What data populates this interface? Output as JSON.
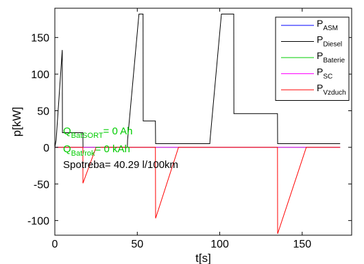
{
  "chart_data": {
    "type": "line",
    "xlabel": "t[s]",
    "ylabel": "p[kW]",
    "xlim": [
      0,
      180
    ],
    "ylim": [
      -120,
      190
    ],
    "xticks": [
      0,
      50,
      100,
      150
    ],
    "yticks": [
      -100,
      -50,
      0,
      50,
      100,
      150
    ],
    "grid": false,
    "legend_position": "top-right",
    "series": [
      {
        "name": "P",
        "sub": "ASM",
        "color": "#0000ff",
        "x": [
          0,
          173
        ],
        "y": [
          0,
          0
        ]
      },
      {
        "name": "P",
        "sub": "Diesel",
        "color": "#000000",
        "x": [
          0,
          0.8,
          4.5,
          4.6,
          5.5,
          17,
          17.1,
          27,
          27.1,
          44,
          44.1,
          51,
          51.1,
          53.5,
          53.6,
          61,
          61.1,
          94,
          94.1,
          101,
          101.1,
          108.5,
          108.6,
          135,
          135.1,
          173
        ],
        "y": [
          0,
          10,
          133,
          20,
          20,
          20,
          0,
          0,
          0,
          0,
          10,
          182,
          182,
          182,
          36,
          36,
          5,
          5,
          10,
          182,
          182,
          182,
          46,
          46,
          5,
          5
        ]
      },
      {
        "name": "P",
        "sub": "Baterie",
        "color": "#00cc00",
        "x": [
          0,
          173
        ],
        "y": [
          0,
          0
        ]
      },
      {
        "name": "P",
        "sub": "SC",
        "color": "#ff00ff",
        "x": [
          0,
          173
        ],
        "y": [
          0,
          0
        ]
      },
      {
        "name": "P",
        "sub": "Vzduch",
        "color": "#ff0000",
        "x": [
          0,
          17,
          17.05,
          25,
          25.1,
          61,
          61.1,
          75,
          75.1,
          135,
          135.1,
          152.5,
          152.6,
          173
        ],
        "y": [
          0,
          0,
          -49,
          0,
          0,
          0,
          -97,
          0,
          0,
          0,
          -118,
          0,
          0,
          0
        ]
      }
    ],
    "annotations": [
      {
        "main": "Q",
        "sub": "BatSORT",
        "rest": "= 0 Ah",
        "color": "#00cc00"
      },
      {
        "main": "Q",
        "sub": "Bat/rok",
        "rest": "= 0 kAh",
        "color": "#00cc00"
      },
      {
        "main": "Spotreba",
        "sub": "",
        "rest": "= 40.29 l/100km",
        "color": "#000000"
      }
    ]
  }
}
